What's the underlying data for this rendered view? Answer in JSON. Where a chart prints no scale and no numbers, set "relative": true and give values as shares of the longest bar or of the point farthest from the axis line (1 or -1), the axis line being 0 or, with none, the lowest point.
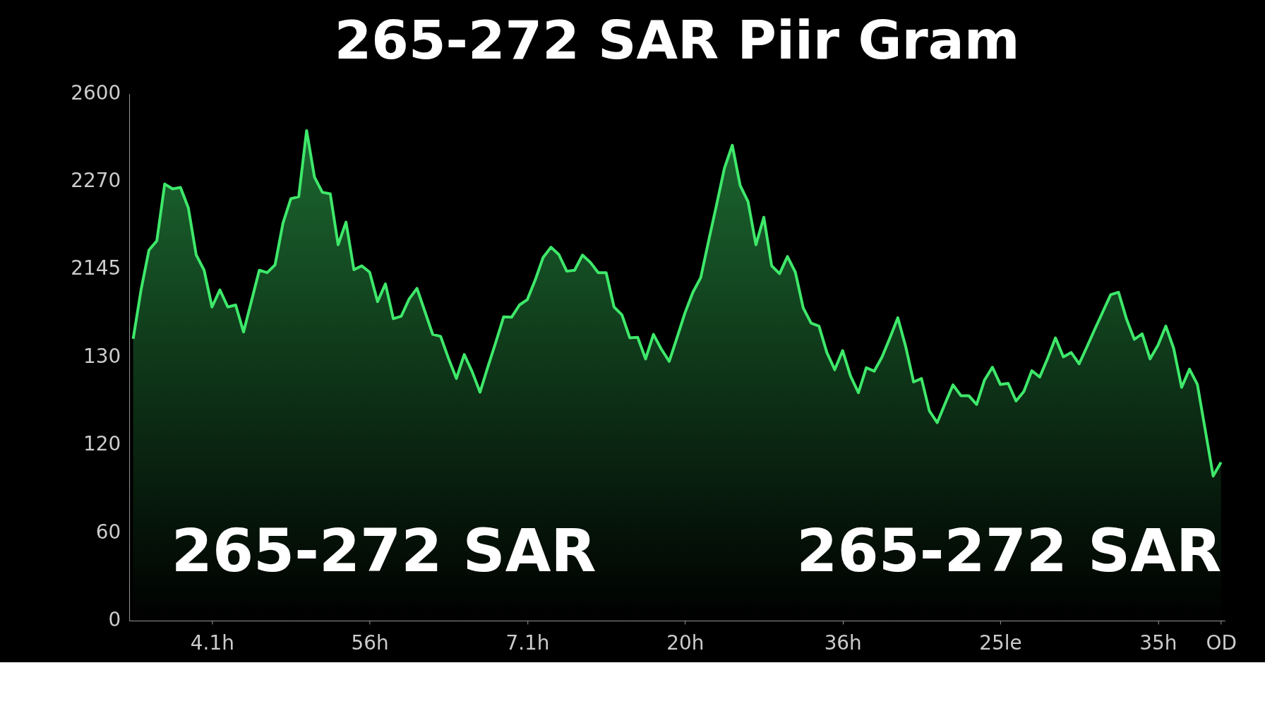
{
  "chart_data": {
    "type": "area",
    "title": "265-272 SAR Piir Gram",
    "relative": true,
    "categories": [
      null,
      null,
      null,
      null,
      null,
      null,
      null,
      null,
      null,
      null,
      "4.1h",
      null,
      null,
      null,
      null,
      null,
      null,
      null,
      null,
      null,
      null,
      null,
      null,
      null,
      null,
      null,
      null,
      null,
      null,
      null,
      "56h",
      null,
      null,
      null,
      null,
      null,
      null,
      null,
      null,
      null,
      null,
      null,
      null,
      null,
      null,
      null,
      null,
      null,
      null,
      null,
      "7.1h",
      null,
      null,
      null,
      null,
      null,
      null,
      null,
      null,
      null,
      null,
      null,
      null,
      null,
      null,
      null,
      null,
      null,
      null,
      null,
      "20h",
      null,
      null,
      null,
      null,
      null,
      null,
      null,
      null,
      null,
      null,
      null,
      null,
      null,
      null,
      null,
      null,
      null,
      null,
      null,
      "36h",
      null,
      null,
      null,
      null,
      null,
      null,
      null,
      null,
      null,
      null,
      null,
      null,
      null,
      null,
      null,
      null,
      null,
      null,
      null,
      "25le",
      null,
      null,
      null,
      null,
      null,
      null,
      null,
      null,
      null,
      null,
      null,
      null,
      null,
      null,
      null,
      null,
      null,
      null,
      null,
      "35h",
      null,
      null,
      null,
      null,
      null,
      null,
      null,
      "OD"
    ],
    "series": [
      {
        "color": "#3ee86a",
        "values": [
          0.575,
          0.675,
          0.756,
          0.775,
          0.891,
          0.881,
          0.884,
          0.842,
          0.746,
          0.715,
          0.64,
          0.675,
          0.64,
          0.644,
          0.589,
          0.652,
          0.715,
          0.71,
          0.726,
          0.811,
          0.861,
          0.865,
          1.0,
          0.905,
          0.874,
          0.871,
          0.767,
          0.813,
          0.716,
          0.724,
          0.711,
          0.651,
          0.687,
          0.616,
          0.621,
          0.656,
          0.678,
          0.631,
          0.584,
          0.58,
          0.535,
          0.494,
          0.543,
          0.508,
          0.466,
          0.518,
          0.568,
          0.62,
          0.619,
          0.644,
          0.655,
          0.695,
          0.741,
          0.762,
          0.747,
          0.713,
          0.715,
          0.746,
          0.731,
          0.71,
          0.71,
          0.64,
          0.624,
          0.577,
          0.578,
          0.534,
          0.584,
          0.554,
          0.529,
          0.578,
          0.628,
          0.67,
          0.7,
          0.775,
          0.848,
          0.923,
          0.97,
          0.888,
          0.855,
          0.767,
          0.823,
          0.724,
          0.708,
          0.743,
          0.711,
          0.638,
          0.607,
          0.601,
          0.547,
          0.512,
          0.551,
          0.499,
          0.465,
          0.516,
          0.509,
          0.538,
          0.577,
          0.618,
          0.559,
          0.487,
          0.494,
          0.428,
          0.404,
          0.443,
          0.481,
          0.459,
          0.459,
          0.441,
          0.491,
          0.517,
          0.482,
          0.484,
          0.448,
          0.468,
          0.51,
          0.497,
          0.535,
          0.577,
          0.538,
          0.547,
          0.524,
          0.559,
          0.595,
          0.63,
          0.665,
          0.67,
          0.616,
          0.574,
          0.585,
          0.534,
          0.562,
          0.601,
          0.555,
          0.476,
          0.513,
          0.482,
          0.389,
          0.295,
          0.323
        ]
      }
    ],
    "annotations": [
      "265-272 SAR",
      "265-272 SAR",
      "2600",
      "2270",
      "2145",
      "130",
      "120",
      "60",
      "0"
    ]
  }
}
